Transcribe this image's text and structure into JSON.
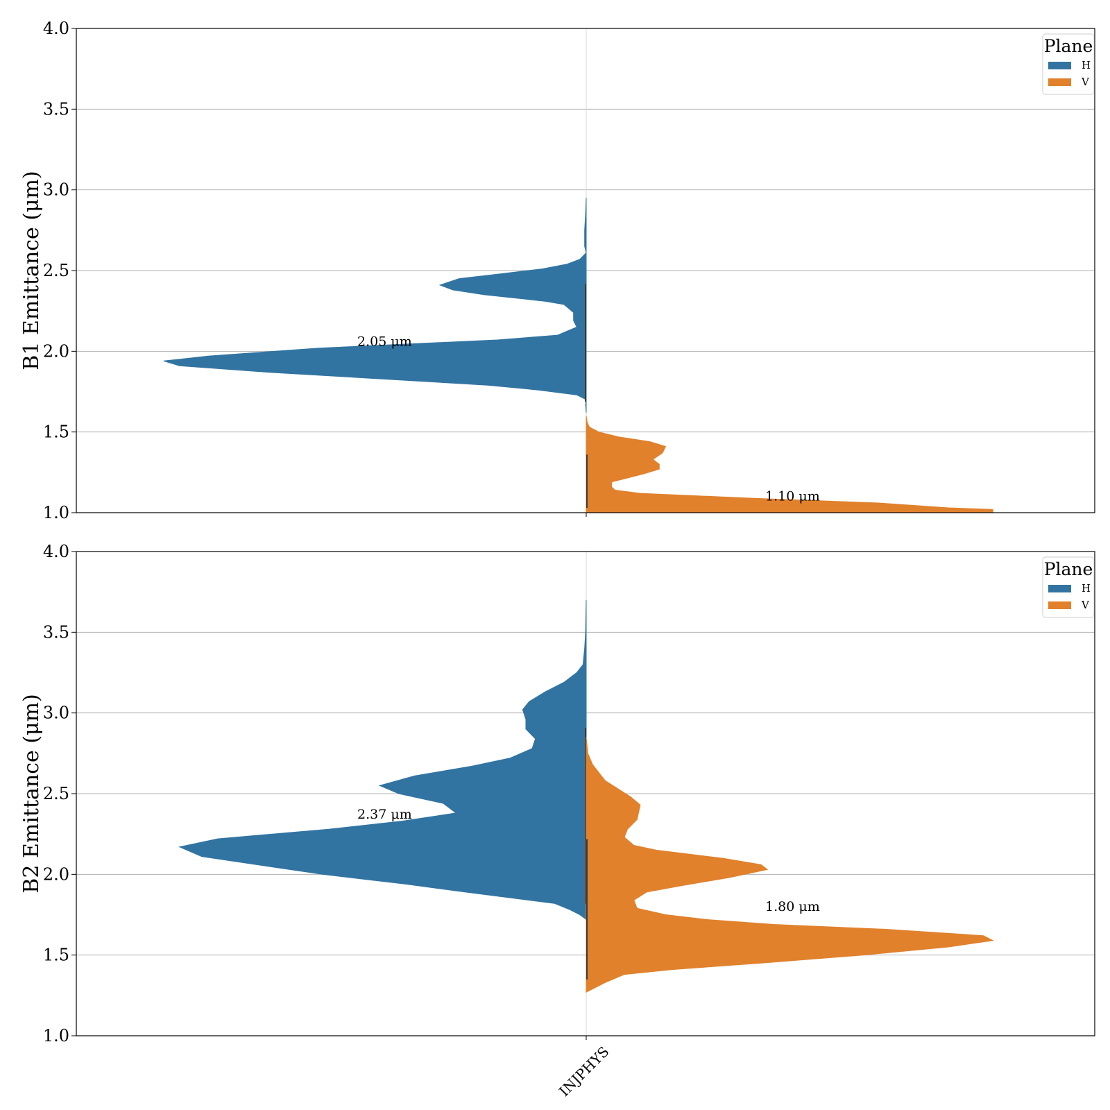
{
  "chart_data": [
    {
      "type": "violin",
      "ylabel": "B1 Emittance (μm)",
      "ylim": [
        1.0,
        4.0
      ],
      "yticks": [
        "1.0",
        "1.5",
        "2.0",
        "2.5",
        "3.0",
        "3.5",
        "4.0"
      ],
      "categories": [
        "INJPHYS"
      ],
      "grid": true,
      "legend": {
        "title": "Plane",
        "placement": "top-right",
        "entries": [
          "H",
          "V"
        ]
      },
      "series": [
        {
          "name": "H",
          "side": "left",
          "color": "#3274a1",
          "annotation": "2.05 μm",
          "annotation_y": 2.06,
          "profile": [
            [
              1.62,
              0.0
            ],
            [
              1.67,
              0.002
            ],
            [
              1.7,
              0.0
            ],
            [
              1.73,
              0.03
            ],
            [
              1.76,
              0.15
            ],
            [
              1.79,
              0.31
            ],
            [
              1.87,
              1.0
            ],
            [
              1.91,
              1.28
            ],
            [
              1.94,
              1.33
            ],
            [
              1.97,
              1.19
            ],
            [
              2.02,
              0.84
            ],
            [
              2.07,
              0.28
            ],
            [
              2.1,
              0.09
            ],
            [
              2.15,
              0.03
            ],
            [
              2.19,
              0.04
            ],
            [
              2.24,
              0.04
            ],
            [
              2.29,
              0.07
            ],
            [
              2.31,
              0.13
            ],
            [
              2.35,
              0.32
            ],
            [
              2.38,
              0.42
            ],
            [
              2.41,
              0.46
            ],
            [
              2.45,
              0.4
            ],
            [
              2.48,
              0.27
            ],
            [
              2.51,
              0.14
            ],
            [
              2.54,
              0.06
            ],
            [
              2.57,
              0.02
            ],
            [
              2.61,
              0.0
            ],
            [
              2.65,
              0.005
            ],
            [
              2.75,
              0.005
            ],
            [
              2.85,
              0.002
            ],
            [
              2.95,
              0.0
            ]
          ]
        },
        {
          "name": "V",
          "side": "right",
          "color": "#e1812c",
          "annotation": "1.10 μm",
          "annotation_y": 1.1,
          "profile": [
            [
              1.0,
              1.28
            ],
            [
              1.02,
              1.28
            ],
            [
              1.03,
              1.14
            ],
            [
              1.06,
              0.92
            ],
            [
              1.09,
              0.52
            ],
            [
              1.12,
              0.17
            ],
            [
              1.14,
              0.09
            ],
            [
              1.16,
              0.08
            ],
            [
              1.19,
              0.08
            ],
            [
              1.21,
              0.12
            ],
            [
              1.24,
              0.18
            ],
            [
              1.27,
              0.23
            ],
            [
              1.3,
              0.23
            ],
            [
              1.33,
              0.21
            ],
            [
              1.37,
              0.24
            ],
            [
              1.41,
              0.25
            ],
            [
              1.44,
              0.2
            ],
            [
              1.47,
              0.1
            ],
            [
              1.5,
              0.04
            ],
            [
              1.53,
              0.01
            ],
            [
              1.56,
              0.003
            ],
            [
              1.6,
              0.0
            ]
          ]
        }
      ]
    },
    {
      "type": "violin",
      "ylabel": "B2 Emittance (μm)",
      "ylim": [
        1.0,
        4.0
      ],
      "yticks": [
        "1.0",
        "1.5",
        "2.0",
        "2.5",
        "3.0",
        "3.5",
        "4.0"
      ],
      "categories": [
        "INJPHYS"
      ],
      "grid": true,
      "legend": {
        "title": "Plane",
        "placement": "top-right",
        "entries": [
          "H",
          "V"
        ]
      },
      "series": [
        {
          "name": "H",
          "side": "left",
          "color": "#3274a1",
          "annotation": "2.37 μm",
          "annotation_y": 2.37,
          "profile": [
            [
              1.72,
              0.0
            ],
            [
              1.75,
              0.02
            ],
            [
              1.78,
              0.05
            ],
            [
              1.82,
              0.1
            ],
            [
              1.89,
              0.38
            ],
            [
              1.94,
              0.57
            ],
            [
              2.0,
              0.83
            ],
            [
              2.11,
              1.21
            ],
            [
              2.17,
              1.28
            ],
            [
              2.22,
              1.16
            ],
            [
              2.28,
              0.81
            ],
            [
              2.33,
              0.58
            ],
            [
              2.38,
              0.41
            ],
            [
              2.44,
              0.45
            ],
            [
              2.5,
              0.59
            ],
            [
              2.55,
              0.65
            ],
            [
              2.61,
              0.54
            ],
            [
              2.67,
              0.36
            ],
            [
              2.72,
              0.24
            ],
            [
              2.78,
              0.17
            ],
            [
              2.84,
              0.16
            ],
            [
              2.9,
              0.19
            ],
            [
              2.96,
              0.19
            ],
            [
              3.02,
              0.2
            ],
            [
              3.07,
              0.18
            ],
            [
              3.13,
              0.13
            ],
            [
              3.19,
              0.07
            ],
            [
              3.25,
              0.03
            ],
            [
              3.3,
              0.01
            ],
            [
              3.4,
              0.005
            ],
            [
              3.5,
              0.002
            ],
            [
              3.7,
              0.0
            ]
          ]
        },
        {
          "name": "V",
          "side": "right",
          "color": "#e1812c",
          "annotation": "1.80 μm",
          "annotation_y": 1.8,
          "profile": [
            [
              1.27,
              0.0
            ],
            [
              1.29,
              0.02
            ],
            [
              1.33,
              0.06
            ],
            [
              1.38,
              0.12
            ],
            [
              1.41,
              0.27
            ],
            [
              1.45,
              0.55
            ],
            [
              1.5,
              0.87
            ],
            [
              1.55,
              1.14
            ],
            [
              1.59,
              1.28
            ],
            [
              1.62,
              1.25
            ],
            [
              1.66,
              0.94
            ],
            [
              1.69,
              0.59
            ],
            [
              1.72,
              0.38
            ],
            [
              1.75,
              0.25
            ],
            [
              1.79,
              0.16
            ],
            [
              1.84,
              0.15
            ],
            [
              1.89,
              0.19
            ],
            [
              1.93,
              0.3
            ],
            [
              1.98,
              0.45
            ],
            [
              2.03,
              0.57
            ],
            [
              2.06,
              0.55
            ],
            [
              2.1,
              0.43
            ],
            [
              2.15,
              0.22
            ],
            [
              2.18,
              0.15
            ],
            [
              2.23,
              0.12
            ],
            [
              2.28,
              0.13
            ],
            [
              2.34,
              0.16
            ],
            [
              2.43,
              0.17
            ],
            [
              2.48,
              0.14
            ],
            [
              2.53,
              0.1
            ],
            [
              2.58,
              0.06
            ],
            [
              2.63,
              0.04
            ],
            [
              2.68,
              0.02
            ],
            [
              2.75,
              0.005
            ],
            [
              2.85,
              0.0
            ]
          ]
        }
      ]
    }
  ]
}
